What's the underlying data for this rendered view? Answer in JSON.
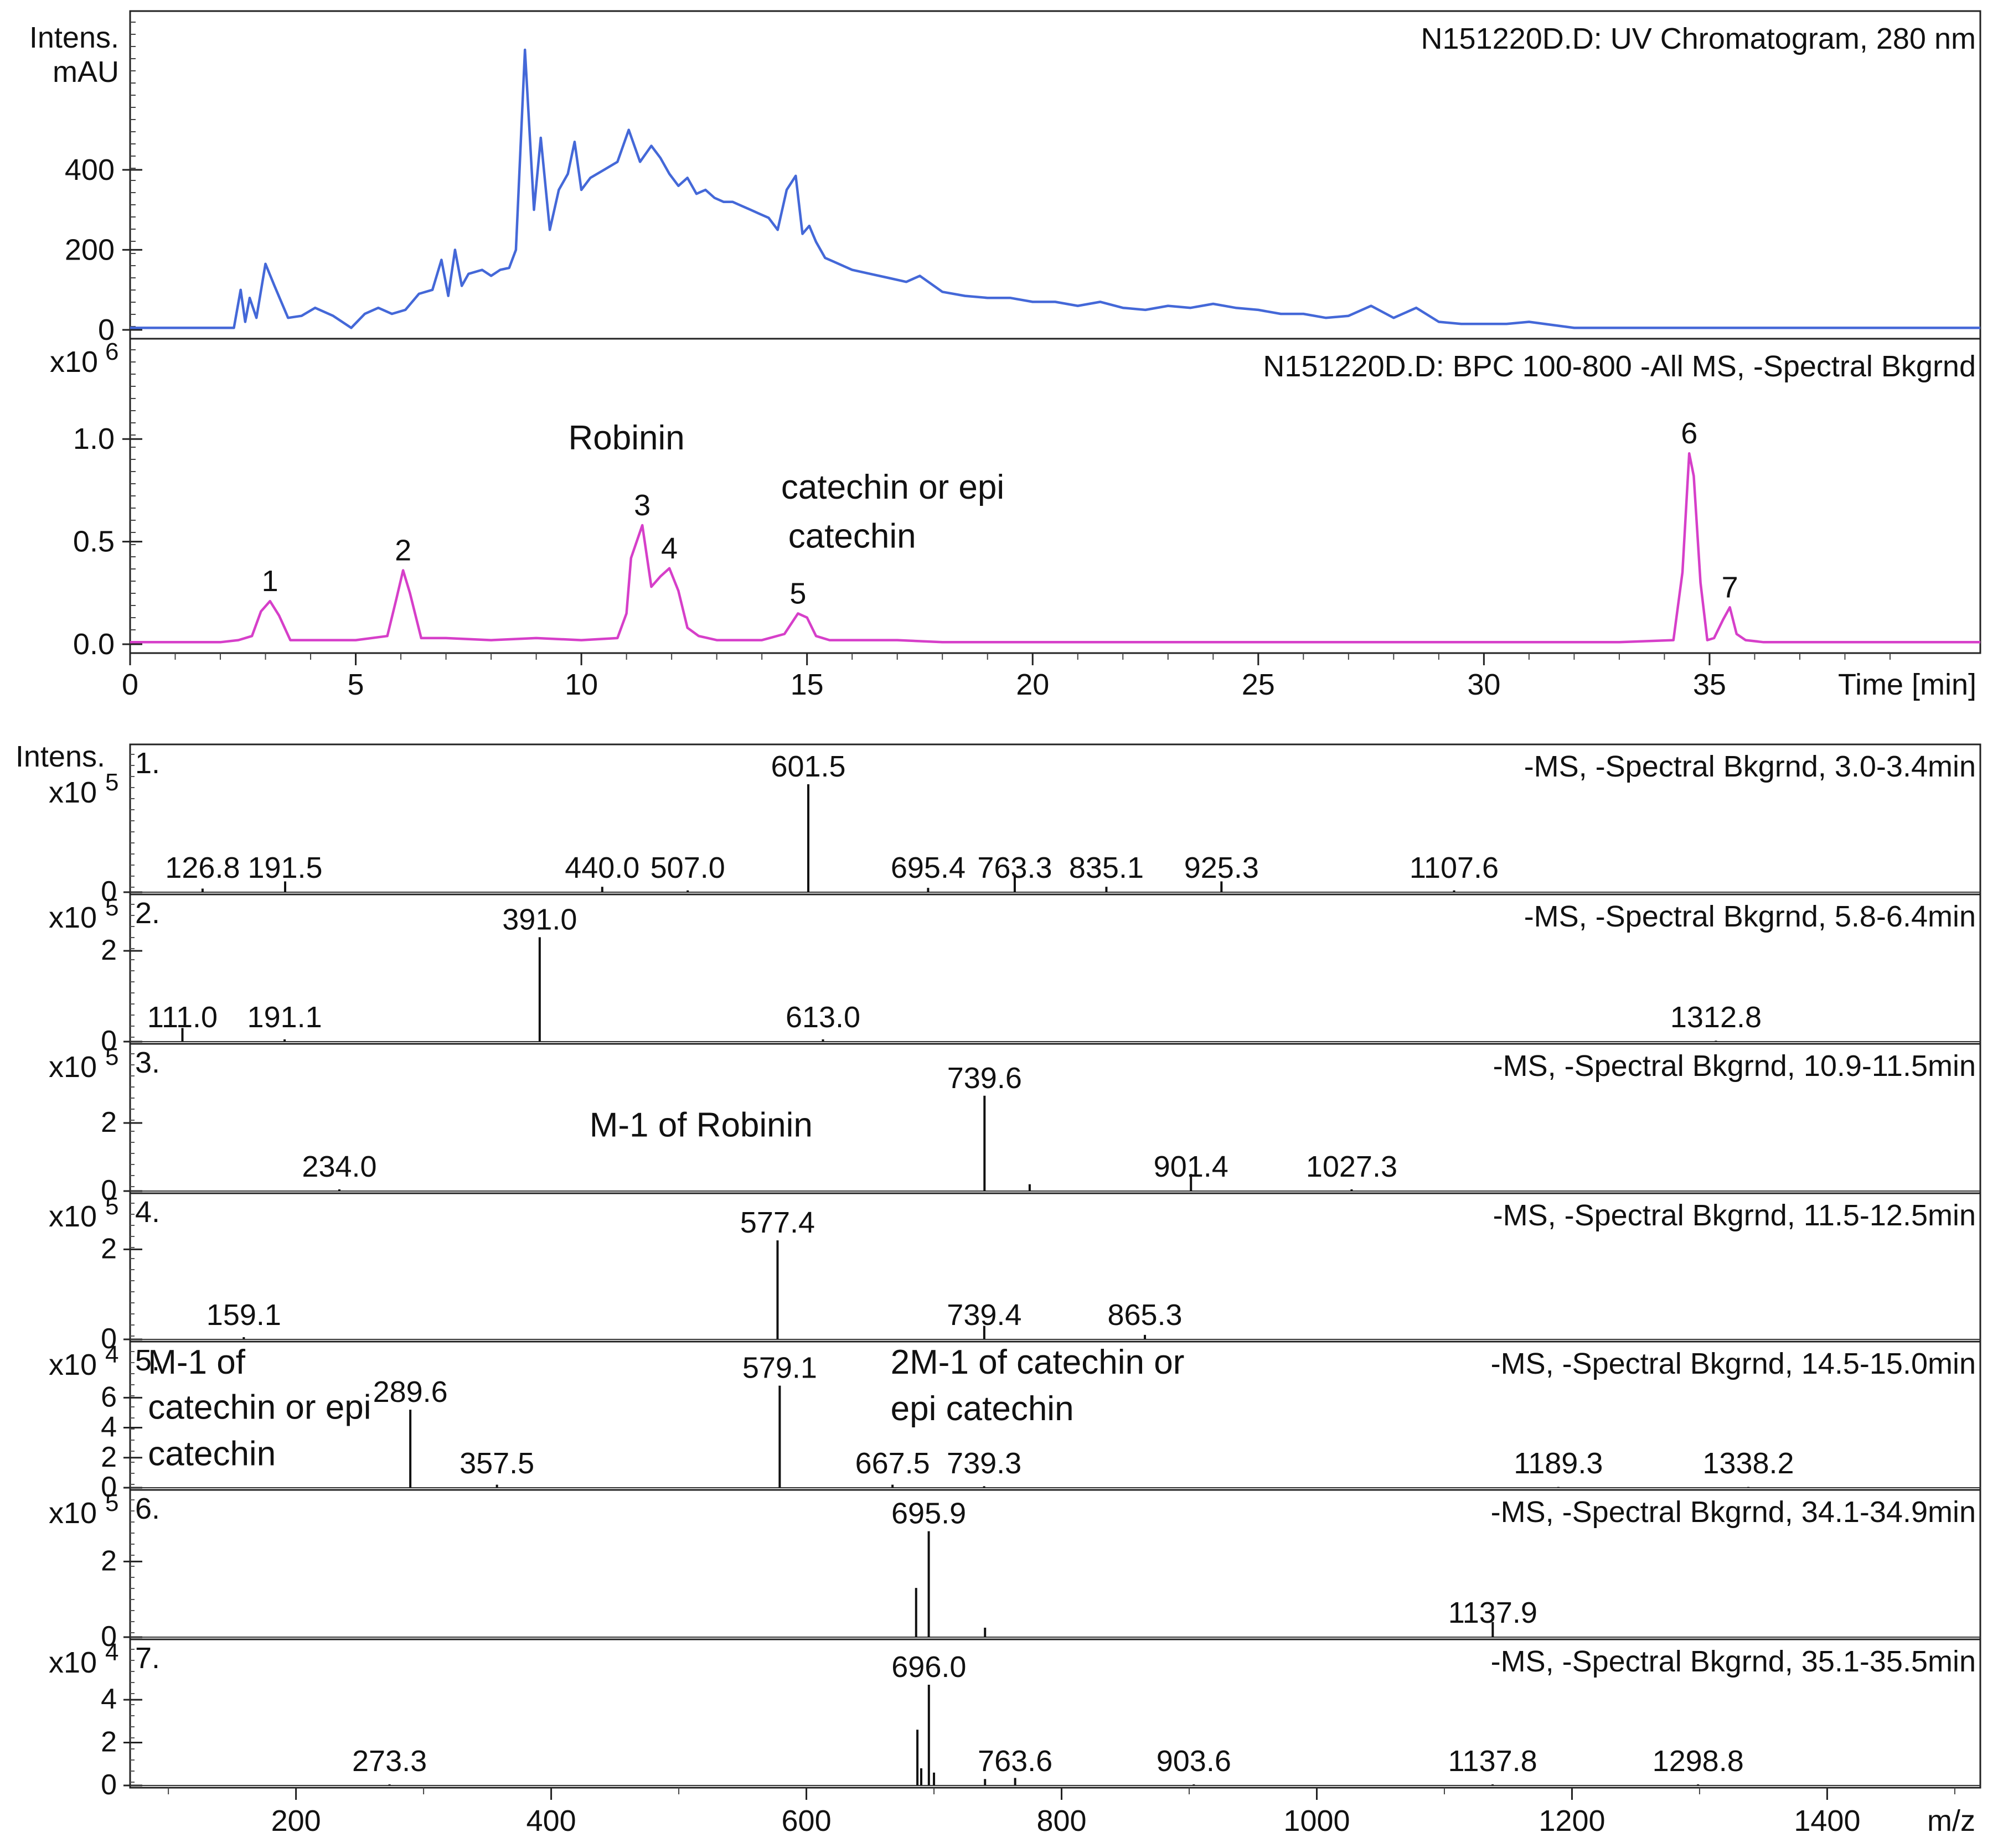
{
  "chart_data": [
    {
      "type": "line",
      "panel": "uv",
      "title": "N151220D.D: UV Chromatogram, 280 nm",
      "ylabel_line1": "Intens.",
      "ylabel_line2": "mAU",
      "xlim": [
        0,
        41
      ],
      "ylim": [
        0,
        700
      ],
      "yticks": [
        0,
        200,
        400
      ],
      "ytick_labels": [
        "0",
        "200",
        "400"
      ],
      "color": "#4468d8",
      "series": [
        {
          "x": [
            0,
            2.3,
            2.45,
            2.55,
            2.65,
            2.8,
            3.0,
            3.2,
            3.5,
            3.8,
            4.1,
            4.5,
            4.9,
            5.2,
            5.5,
            5.8,
            6.1,
            6.4,
            6.7,
            6.9,
            7.05,
            7.2,
            7.35,
            7.5,
            7.8,
            8.0,
            8.2,
            8.4,
            8.55,
            8.75,
            8.95,
            9.1,
            9.3,
            9.5,
            9.7,
            9.85,
            10.0,
            10.2,
            10.5,
            10.8,
            11.05,
            11.3,
            11.55,
            11.75,
            11.95,
            12.15,
            12.35,
            12.55,
            12.75,
            12.95,
            13.15,
            13.35,
            13.55,
            13.75,
            13.95,
            14.15,
            14.35,
            14.55,
            14.75,
            14.9,
            15.05,
            15.2,
            15.4,
            15.6,
            15.8,
            16.0,
            16.4,
            16.8,
            17.2,
            17.5,
            18.0,
            18.5,
            19.0,
            19.5,
            20.0,
            20.5,
            21.0,
            21.5,
            22.0,
            22.5,
            23.0,
            23.5,
            24.0,
            24.5,
            25.0,
            25.5,
            26.0,
            26.5,
            27.0,
            27.5,
            28.0,
            28.5,
            29.0,
            29.5,
            30.0,
            30.5,
            31.0,
            32.0,
            33.0,
            34.0,
            35.0,
            36.0,
            37.0,
            38.0,
            39.0,
            40.0,
            41.0
          ],
          "y": [
            5,
            5,
            100,
            20,
            80,
            30,
            165,
            110,
            30,
            35,
            55,
            35,
            5,
            40,
            55,
            40,
            50,
            90,
            100,
            175,
            85,
            200,
            110,
            140,
            150,
            135,
            150,
            155,
            200,
            700,
            300,
            480,
            250,
            350,
            390,
            470,
            350,
            380,
            400,
            420,
            500,
            420,
            460,
            430,
            390,
            360,
            380,
            340,
            350,
            330,
            320,
            320,
            310,
            300,
            290,
            280,
            250,
            350,
            385,
            240,
            260,
            220,
            180,
            170,
            160,
            150,
            140,
            130,
            120,
            135,
            95,
            85,
            80,
            80,
            70,
            70,
            60,
            70,
            55,
            50,
            60,
            55,
            65,
            55,
            50,
            40,
            40,
            30,
            35,
            60,
            30,
            55,
            20,
            15,
            15,
            15,
            20,
            5,
            5,
            5,
            5,
            5,
            5,
            5,
            5,
            5,
            5
          ]
        }
      ]
    },
    {
      "type": "line",
      "panel": "bpc",
      "title": "N151220D.D: BPC 100-800 -All MS, -Spectral Bkgrnd",
      "y_multiplier": "x10",
      "y_exponent": "6",
      "xlabel": "Time [min]",
      "xlim": [
        0,
        41
      ],
      "ylim": [
        0,
        1.3
      ],
      "xticks": [
        0,
        5,
        10,
        15,
        20,
        25,
        30,
        35
      ],
      "xtick_labels": [
        "0",
        "5",
        "10",
        "15",
        "20",
        "25",
        "30",
        "35"
      ],
      "yticks": [
        0,
        0.5,
        1.0
      ],
      "ytick_labels": [
        "0.0",
        "0.5",
        "1.0"
      ],
      "color": "#d63fc9",
      "series": [
        {
          "x": [
            0,
            2.0,
            2.4,
            2.7,
            2.9,
            3.1,
            3.3,
            3.55,
            4.0,
            5.0,
            5.7,
            5.9,
            6.05,
            6.2,
            6.45,
            7.0,
            8.0,
            9.0,
            10.0,
            10.8,
            11.0,
            11.1,
            11.35,
            11.55,
            11.75,
            11.95,
            12.15,
            12.35,
            12.6,
            13.0,
            14.0,
            14.5,
            14.8,
            15.0,
            15.2,
            15.5,
            16.0,
            17.0,
            18.0,
            20.0,
            25.0,
            30.0,
            33.0,
            34.2,
            34.4,
            34.55,
            34.65,
            34.8,
            34.95,
            35.1,
            35.3,
            35.45,
            35.6,
            35.8,
            36.2,
            38.0,
            41.0
          ],
          "y": [
            0.01,
            0.01,
            0.02,
            0.04,
            0.16,
            0.21,
            0.14,
            0.02,
            0.02,
            0.02,
            0.04,
            0.22,
            0.36,
            0.25,
            0.03,
            0.03,
            0.02,
            0.03,
            0.02,
            0.03,
            0.15,
            0.42,
            0.58,
            0.28,
            0.33,
            0.37,
            0.26,
            0.08,
            0.04,
            0.02,
            0.02,
            0.05,
            0.15,
            0.13,
            0.04,
            0.02,
            0.02,
            0.02,
            0.01,
            0.01,
            0.01,
            0.01,
            0.01,
            0.02,
            0.35,
            0.93,
            0.82,
            0.3,
            0.02,
            0.03,
            0.12,
            0.18,
            0.05,
            0.02,
            0.01,
            0.01,
            0.01
          ]
        }
      ],
      "peak_labels": [
        {
          "label": "1",
          "x": 3.1,
          "y": 0.21
        },
        {
          "label": "2",
          "x": 6.05,
          "y": 0.36
        },
        {
          "label": "3",
          "x": 11.35,
          "y": 0.58
        },
        {
          "label": "4",
          "x": 11.95,
          "y": 0.37
        },
        {
          "label": "5",
          "x": 14.8,
          "y": 0.15
        },
        {
          "label": "6",
          "x": 34.55,
          "y": 0.93
        },
        {
          "label": "7",
          "x": 35.45,
          "y": 0.18
        }
      ],
      "annotations": [
        {
          "text": "Robinin",
          "x": 11.0,
          "y": 0.95
        },
        {
          "text": "catechin or epi",
          "x": 16.9,
          "y": 0.71
        },
        {
          "text": "catechin",
          "x": 16.0,
          "y": 0.47
        }
      ]
    },
    {
      "type": "bar",
      "panel": "ms1",
      "label": "1.",
      "title": "-MS, -Spectral Bkgrnd, 3.0-3.4min",
      "ylabel": "Intens.",
      "y_multiplier": "x10",
      "y_exponent": "5",
      "xlim": [
        70,
        1520
      ],
      "ylim": [
        0,
        3.8
      ],
      "yticks": [
        0
      ],
      "ytick_labels": [
        "0"
      ],
      "peaks": [
        {
          "mz": 126.8,
          "y": 0.1,
          "label": "126.8"
        },
        {
          "mz": 191.5,
          "y": 0.3,
          "label": "191.5"
        },
        {
          "mz": 440.0,
          "y": 0.15,
          "label": "440.0"
        },
        {
          "mz": 507.0,
          "y": 0.05,
          "label": "507.0"
        },
        {
          "mz": 601.5,
          "y": 3.0,
          "label": "601.5"
        },
        {
          "mz": 695.4,
          "y": 0.12,
          "label": "695.4"
        },
        {
          "mz": 763.3,
          "y": 0.5,
          "label": "763.3"
        },
        {
          "mz": 835.1,
          "y": 0.15,
          "label": "835.1"
        },
        {
          "mz": 925.3,
          "y": 0.3,
          "label": "925.3"
        },
        {
          "mz": 1107.6,
          "y": 0.05,
          "label": "1107.6"
        }
      ]
    },
    {
      "type": "bar",
      "panel": "ms2",
      "label": "2.",
      "title": "-MS, -Spectral Bkgrnd, 5.8-6.4min",
      "y_multiplier": "x10",
      "y_exponent": "5",
      "xlim": [
        70,
        1520
      ],
      "ylim": [
        0,
        3.0
      ],
      "yticks": [
        0,
        2
      ],
      "ytick_labels": [
        "0",
        "2"
      ],
      "peaks": [
        {
          "mz": 111.0,
          "y": 0.3,
          "label": "111.0"
        },
        {
          "mz": 191.1,
          "y": 0.05,
          "label": "191.1"
        },
        {
          "mz": 391.0,
          "y": 2.3,
          "label": "391.0"
        },
        {
          "mz": 613.0,
          "y": 0.05,
          "label": "613.0"
        },
        {
          "mz": 1312.8,
          "y": 0.02,
          "label": "1312.8"
        }
      ]
    },
    {
      "type": "bar",
      "panel": "ms3",
      "label": "3.",
      "title": "-MS, -Spectral Bkgrnd, 10.9-11.5min",
      "y_multiplier": "x10",
      "y_exponent": "5",
      "xlim": [
        70,
        1520
      ],
      "ylim": [
        0,
        4.0
      ],
      "yticks": [
        0,
        2
      ],
      "ytick_labels": [
        "0",
        "2"
      ],
      "peaks": [
        {
          "mz": 234.0,
          "y": 0.05,
          "label": "234.0"
        },
        {
          "mz": 739.6,
          "y": 2.8,
          "label": "739.6"
        },
        {
          "mz": 775.0,
          "y": 0.2,
          "label": ""
        },
        {
          "mz": 901.4,
          "y": 0.5,
          "label": "901.4"
        },
        {
          "mz": 1027.3,
          "y": 0.05,
          "label": "1027.3"
        }
      ],
      "annotations": [
        {
          "text": "M-1 of Robinin",
          "mz": 430,
          "y": 1.6
        }
      ]
    },
    {
      "type": "bar",
      "panel": "ms4",
      "label": "4.",
      "title": "-MS, -Spectral Bkgrnd, 11.5-12.5min",
      "y_multiplier": "x10",
      "y_exponent": "5",
      "xlim": [
        70,
        1520
      ],
      "ylim": [
        0,
        3.0
      ],
      "yticks": [
        0,
        2
      ],
      "ytick_labels": [
        "0",
        "2"
      ],
      "peaks": [
        {
          "mz": 159.1,
          "y": 0.05,
          "label": "159.1"
        },
        {
          "mz": 577.4,
          "y": 2.2,
          "label": "577.4"
        },
        {
          "mz": 739.4,
          "y": 0.3,
          "label": "739.4"
        },
        {
          "mz": 865.3,
          "y": 0.1,
          "label": "865.3"
        }
      ]
    },
    {
      "type": "bar",
      "panel": "ms5",
      "label": "5.",
      "title": "-MS, -Spectral Bkgrnd, 14.5-15.0min",
      "y_multiplier": "x10",
      "y_exponent": "4",
      "xlim": [
        70,
        1520
      ],
      "ylim": [
        0,
        9.0
      ],
      "yticks": [
        0,
        2,
        4,
        6
      ],
      "ytick_labels": [
        "0",
        "2",
        "4",
        "6"
      ],
      "peaks": [
        {
          "mz": 289.6,
          "y": 5.2,
          "label": "289.6"
        },
        {
          "mz": 357.5,
          "y": 0.2,
          "label": "357.5"
        },
        {
          "mz": 579.1,
          "y": 6.8,
          "label": "579.1"
        },
        {
          "mz": 667.5,
          "y": 0.2,
          "label": "667.5"
        },
        {
          "mz": 739.3,
          "y": 0.1,
          "label": "739.3"
        },
        {
          "mz": 1189.3,
          "y": 0.05,
          "label": "1189.3"
        },
        {
          "mz": 1338.2,
          "y": 0.05,
          "label": "1338.2"
        }
      ],
      "annotations": [
        {
          "text": "M-1 of",
          "mz": 84,
          "y": 7.6
        },
        {
          "text": "catechin or epi",
          "mz": 84,
          "y": 4.6
        },
        {
          "text": "catechin",
          "mz": 84,
          "y": 1.5
        },
        {
          "text": "2M-1 of catechin or",
          "mz": 666,
          "y": 7.6
        },
        {
          "text": "epi catechin",
          "mz": 666,
          "y": 4.5
        }
      ]
    },
    {
      "type": "bar",
      "panel": "ms6",
      "label": "6.",
      "title": "-MS, -Spectral Bkgrnd, 34.1-34.9min",
      "y_multiplier": "x10",
      "y_exponent": "5",
      "xlim": [
        70,
        1520
      ],
      "ylim": [
        0,
        3.6
      ],
      "yticks": [
        0,
        2
      ],
      "ytick_labels": [
        "0",
        "2"
      ],
      "peaks": [
        {
          "mz": 686.0,
          "y": 1.3,
          "label": ""
        },
        {
          "mz": 695.9,
          "y": 2.8,
          "label": "695.9"
        },
        {
          "mz": 740.0,
          "y": 0.25,
          "label": ""
        },
        {
          "mz": 1137.9,
          "y": 0.4,
          "label": "1137.9"
        }
      ]
    },
    {
      "type": "bar",
      "panel": "ms7",
      "label": "7.",
      "title": "-MS, -Spectral Bkgrnd, 35.1-35.5min",
      "y_multiplier": "x10",
      "y_exponent": "4",
      "xlabel": "m/z",
      "xlim": [
        70,
        1520
      ],
      "ylim": [
        0,
        6.3
      ],
      "xticks": [
        200,
        400,
        600,
        800,
        1000,
        1200,
        1400
      ],
      "xtick_labels": [
        "200",
        "400",
        "600",
        "800",
        "1000",
        "1200",
        "1400"
      ],
      "yticks": [
        0,
        2,
        4
      ],
      "ytick_labels": [
        "0",
        "2",
        "4"
      ],
      "peaks": [
        {
          "mz": 273.3,
          "y": 0.05,
          "label": "273.3"
        },
        {
          "mz": 687.0,
          "y": 2.6,
          "label": ""
        },
        {
          "mz": 690.0,
          "y": 0.8,
          "label": ""
        },
        {
          "mz": 696.0,
          "y": 4.7,
          "label": "696.0"
        },
        {
          "mz": 700.0,
          "y": 0.6,
          "label": ""
        },
        {
          "mz": 740.0,
          "y": 0.3,
          "label": ""
        },
        {
          "mz": 763.6,
          "y": 0.35,
          "label": "763.6"
        },
        {
          "mz": 903.6,
          "y": 0.05,
          "label": "903.6"
        },
        {
          "mz": 1137.8,
          "y": 0.05,
          "label": "1137.8"
        },
        {
          "mz": 1298.8,
          "y": 0.05,
          "label": "1298.8"
        }
      ]
    }
  ]
}
